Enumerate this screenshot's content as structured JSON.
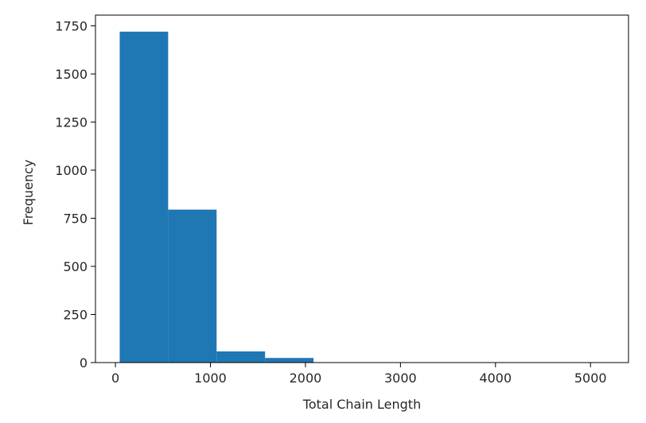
{
  "chart_data": {
    "type": "bar",
    "title": "",
    "xlabel": "Total Chain Length",
    "ylabel": "Frequency",
    "bins": [
      {
        "x0": 45,
        "x1": 555,
        "count": 1720
      },
      {
        "x0": 555,
        "x1": 1065,
        "count": 795
      },
      {
        "x0": 1065,
        "x1": 1575,
        "count": 58
      },
      {
        "x0": 1575,
        "x1": 2085,
        "count": 24
      },
      {
        "x0": 2085,
        "x1": 2595,
        "count": 0
      },
      {
        "x0": 2595,
        "x1": 3105,
        "count": 0
      },
      {
        "x0": 3105,
        "x1": 3615,
        "count": 0
      },
      {
        "x0": 3615,
        "x1": 4125,
        "count": 0
      },
      {
        "x0": 4125,
        "x1": 4635,
        "count": 0
      },
      {
        "x0": 4635,
        "x1": 5145,
        "count": 1
      }
    ],
    "x_ticks": [
      "0",
      "1000",
      "2000",
      "3000",
      "4000",
      "5000"
    ],
    "y_ticks": [
      "0",
      "250",
      "500",
      "750",
      "1000",
      "1250",
      "1500",
      "1750"
    ],
    "xlim": [
      -210,
      5400
    ],
    "ylim": [
      0,
      1806
    ],
    "grid": false,
    "legend": "none",
    "bar_color": "#1f77b4"
  }
}
